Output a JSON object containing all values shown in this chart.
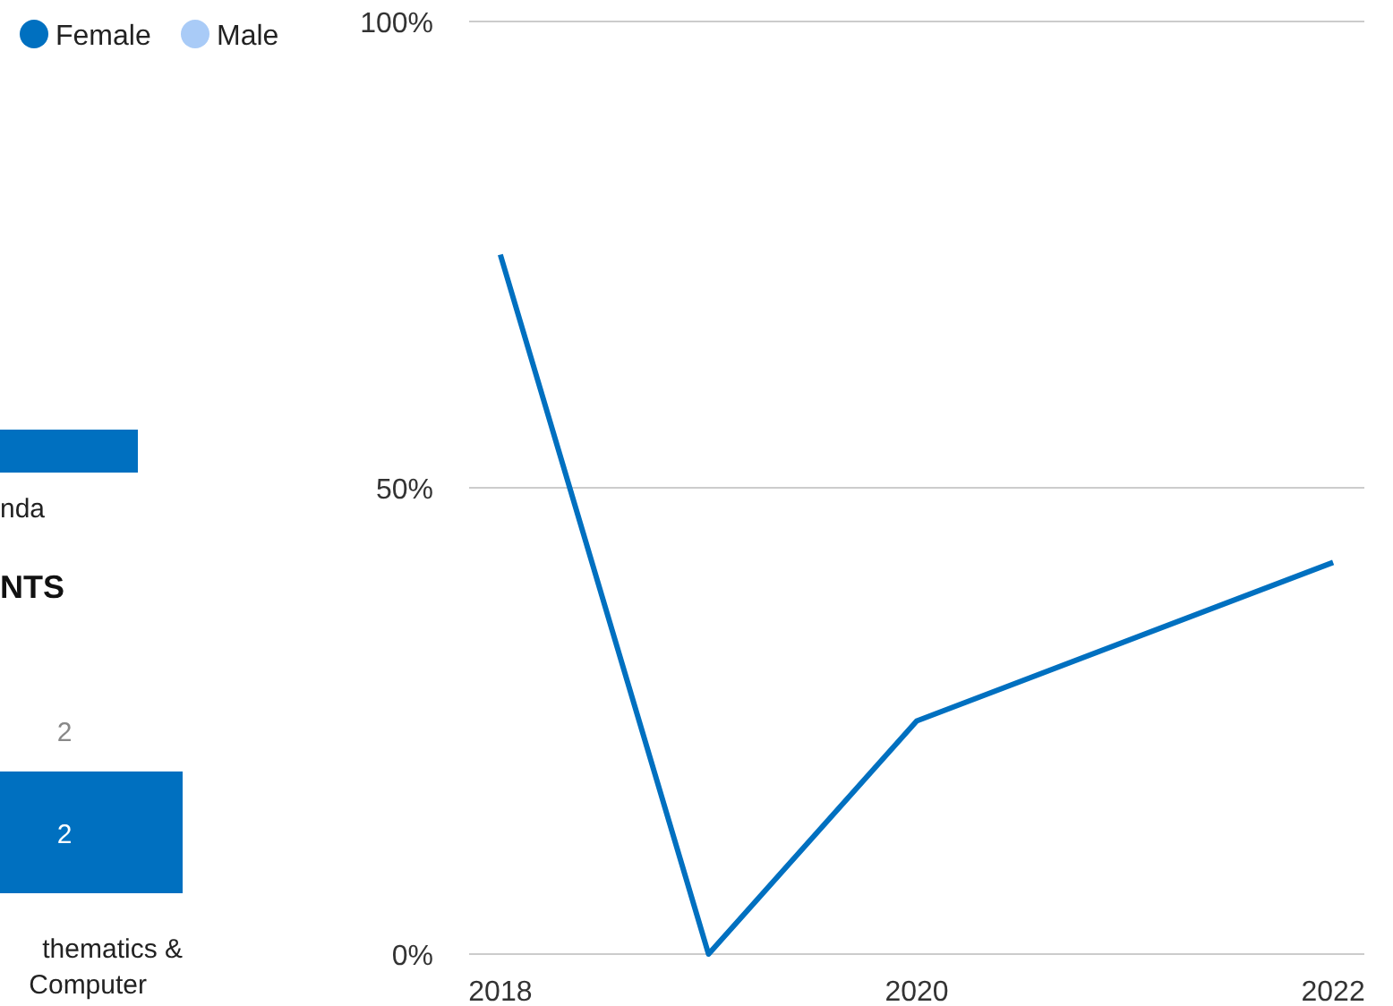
{
  "chart_data": [
    {
      "type": "other",
      "annotations": [
        "nda",
        "NTS",
        "2",
        "2",
        "thematics &",
        "Computer"
      ]
    },
    {
      "type": "line",
      "x": [
        2018,
        2019,
        2020,
        2022
      ],
      "series": [
        {
          "name": "Female",
          "color": "#0070c0",
          "values": [
            75,
            0,
            25,
            42
          ]
        },
        {
          "name": "Male",
          "color": "#a9cbf7",
          "values": [
            null,
            null,
            null,
            null
          ]
        }
      ],
      "xlim": [
        2017.85,
        2022.15
      ],
      "xticks": [
        2018,
        2020,
        2022
      ],
      "ylim": [
        0,
        100
      ],
      "yticks": [
        {
          "value": 0,
          "label": "0%"
        },
        {
          "value": 50,
          "label": "50%"
        },
        {
          "value": 100,
          "label": "100%"
        }
      ],
      "grid": "y",
      "legend": "top left"
    }
  ]
}
